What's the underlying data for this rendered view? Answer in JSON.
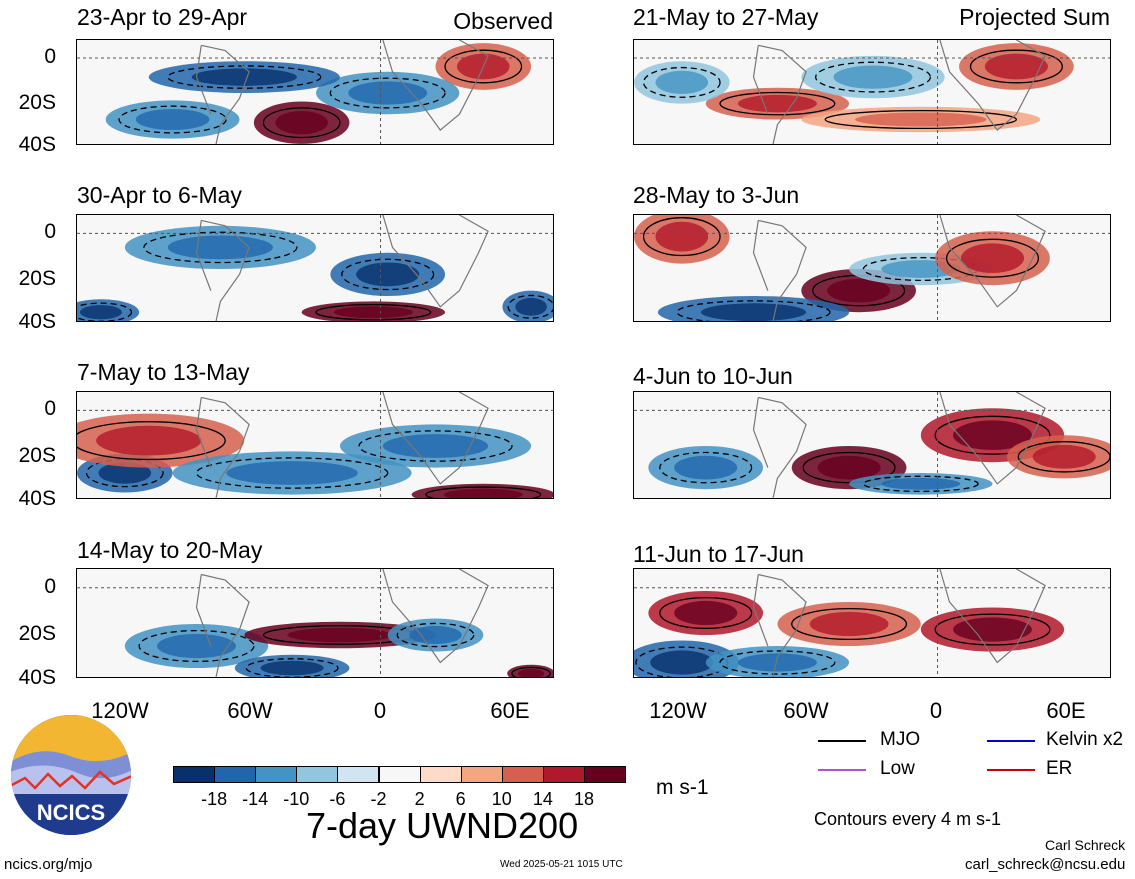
{
  "chart_data": {
    "type": "heatmap",
    "title": "7-day UWND200",
    "units": "m s-1",
    "contour_note": "Contours every 4 m s-1",
    "y_tick_labels": [
      "0",
      "20S",
      "40S"
    ],
    "x_tick_labels": [
      "120W",
      "60W",
      "0",
      "60E"
    ],
    "colorbar_ticks": [
      "-18",
      "-14",
      "-10",
      "-6",
      "-2",
      "2",
      "6",
      "10",
      "14",
      "18"
    ],
    "colorbar_colors": [
      "#08306b",
      "#2166ac",
      "#4393c3",
      "#92c5de",
      "#d1e5f0",
      "#f7f7f7",
      "#fddbc7",
      "#f4a582",
      "#d6604d",
      "#b2182b",
      "#67001f"
    ],
    "columns": [
      {
        "tag": "Observed",
        "panels": [
          {
            "title": "23-Apr to 29-Apr"
          },
          {
            "title": "30-Apr to 6-May"
          },
          {
            "title": "7-May to 13-May"
          },
          {
            "title": "14-May to 20-May"
          }
        ]
      },
      {
        "tag": "Projected Sum",
        "panels": [
          {
            "title": "21-May to 27-May"
          },
          {
            "title": "28-May to 3-Jun"
          },
          {
            "title": "4-Jun to 10-Jun"
          },
          {
            "title": "11-Jun to 17-Jun"
          }
        ]
      }
    ],
    "legend": [
      {
        "label": "MJO",
        "color": "#000000"
      },
      {
        "label": "Kelvin x2",
        "color": "#0000cc"
      },
      {
        "label": "Low",
        "color": "#b04fd8"
      },
      {
        "label": "ER",
        "color": "#cc0000"
      }
    ]
  },
  "footer": {
    "logo_text": "NCICS",
    "site": "ncics.org/mjo",
    "timestamp": "Wed 2025-05-21 1015 UTC",
    "author": "Carl Schreck",
    "email": "carl_schreck@ncsu.edu"
  }
}
